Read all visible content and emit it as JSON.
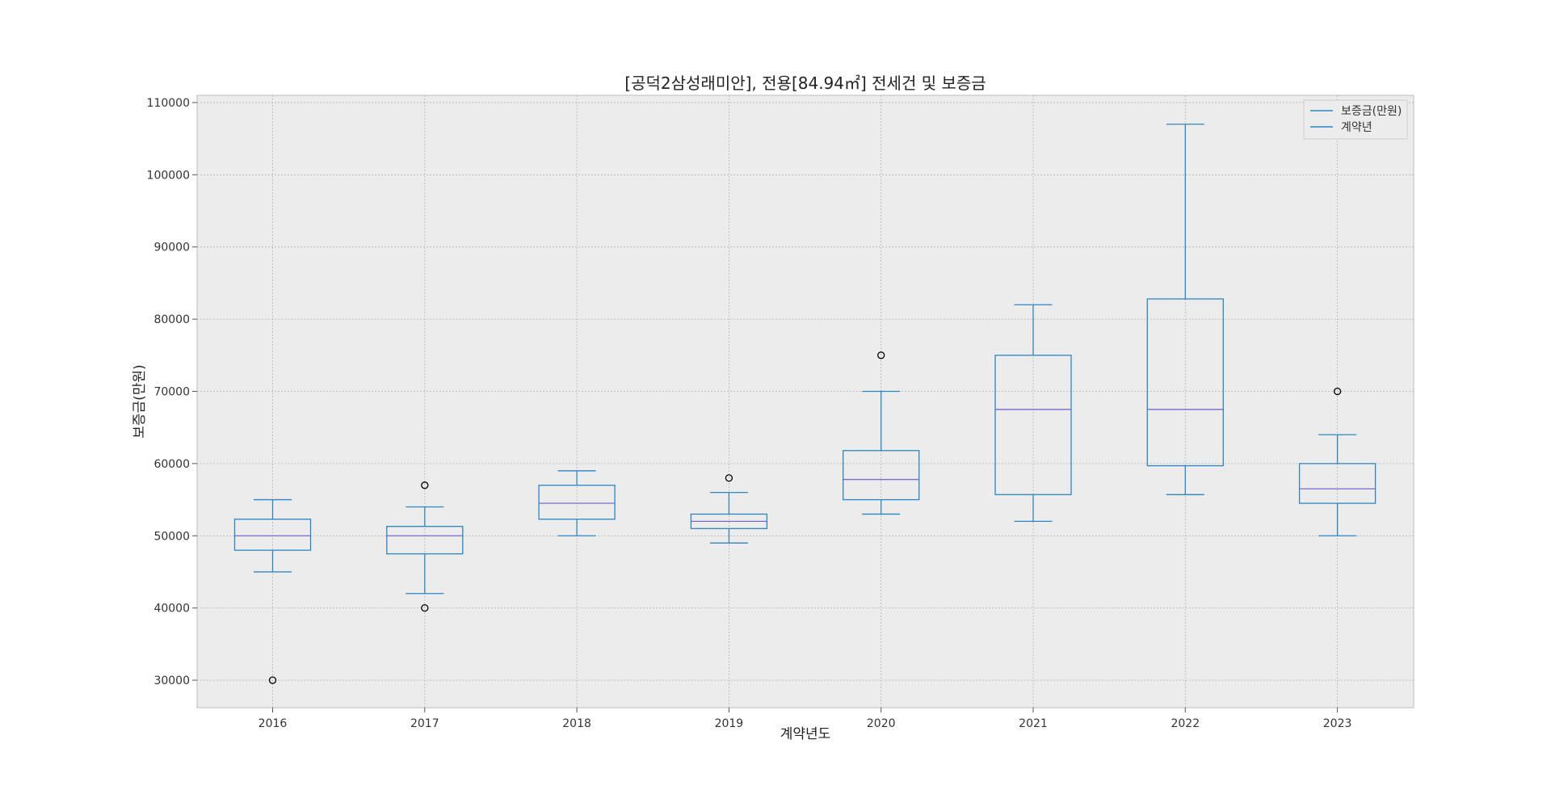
{
  "chart_data": {
    "type": "box",
    "title": "[공덕2삼성래미안], 전용[84.94㎡] 전세건 및 보증금",
    "xlabel": "계약년도",
    "ylabel": "보증금(만원)",
    "ylim": [
      26200,
      111000
    ],
    "yticks": [
      30000,
      40000,
      50000,
      60000,
      70000,
      80000,
      90000,
      100000,
      110000
    ],
    "ytick_labels": [
      "30000",
      "40000",
      "50000",
      "60000",
      "70000",
      "80000",
      "90000",
      "100000",
      "110000"
    ],
    "grid": true,
    "legend_position": "top-right",
    "legend": [
      "보증금(만원)",
      "계약년"
    ],
    "colors": {
      "box": "#2e86c1",
      "median": "#7b68c8",
      "background": "#ececec",
      "grid": "#b3b3b3",
      "outlier": "#000000"
    },
    "categories": [
      "2016",
      "2017",
      "2018",
      "2019",
      "2020",
      "2021",
      "2022",
      "2023"
    ],
    "boxes": [
      {
        "category": "2016",
        "whislo": 45000,
        "q1": 48000,
        "med": 50000,
        "q3": 52300,
        "whishi": 55000,
        "fliers": [
          30000
        ]
      },
      {
        "category": "2017",
        "whislo": 42000,
        "q1": 47500,
        "med": 50000,
        "q3": 51300,
        "whishi": 54000,
        "fliers": [
          40000,
          57000
        ]
      },
      {
        "category": "2018",
        "whislo": 50000,
        "q1": 52300,
        "med": 54500,
        "q3": 57000,
        "whishi": 59000,
        "fliers": []
      },
      {
        "category": "2019",
        "whislo": 49000,
        "q1": 51000,
        "med": 52000,
        "q3": 53000,
        "whishi": 56000,
        "fliers": [
          58000
        ]
      },
      {
        "category": "2020",
        "whislo": 53000,
        "q1": 55000,
        "med": 57800,
        "q3": 61800,
        "whishi": 70000,
        "fliers": [
          75000
        ]
      },
      {
        "category": "2021",
        "whislo": 52000,
        "q1": 55700,
        "med": 67500,
        "q3": 75000,
        "whishi": 82000,
        "fliers": []
      },
      {
        "category": "2022",
        "whislo": 55700,
        "q1": 59700,
        "med": 67500,
        "q3": 82800,
        "whishi": 107000,
        "fliers": []
      },
      {
        "category": "2023",
        "whislo": 50000,
        "q1": 54500,
        "med": 56500,
        "q3": 60000,
        "whishi": 64000,
        "fliers": [
          70000
        ]
      }
    ]
  }
}
